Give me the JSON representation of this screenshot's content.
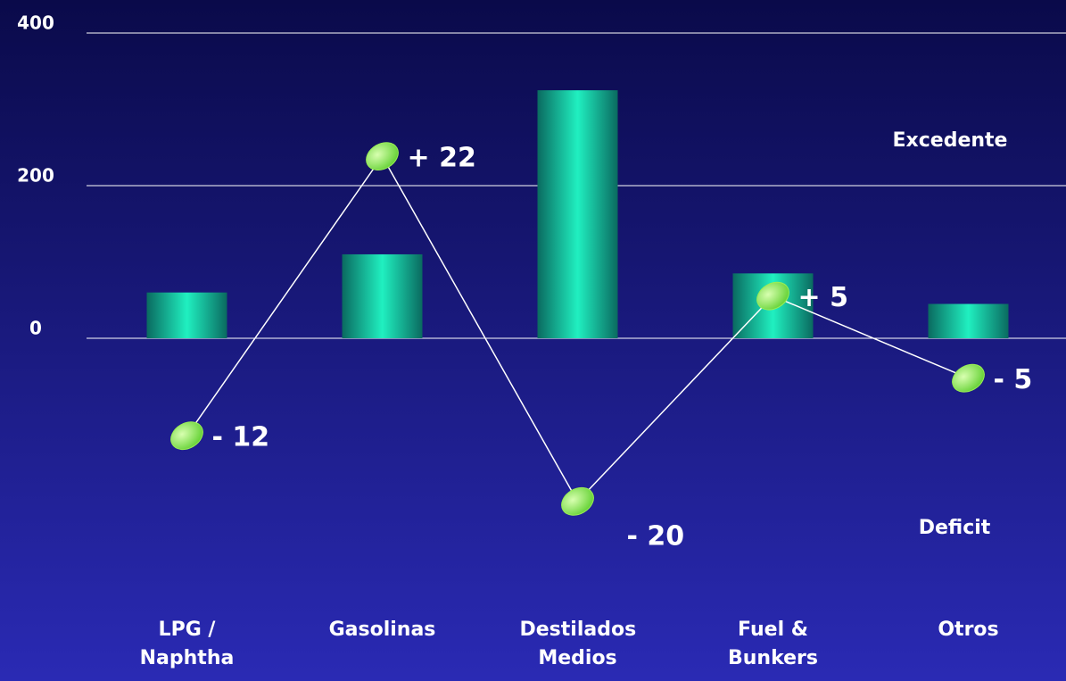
{
  "chart_data": {
    "type": "bar-line",
    "categories": [
      "LPG / Naphtha",
      "Gasolinas",
      "Destilados Medios",
      "Fuel & Bunkers",
      "Otros"
    ],
    "series": [
      {
        "type": "bar",
        "color": "#1de0b0",
        "values": [
          60,
          110,
          325,
          85,
          45
        ]
      },
      {
        "type": "line",
        "axis": "y2",
        "color": "#99ee55",
        "values": [
          -12,
          22,
          -20,
          5,
          -5
        ],
        "value_labels": [
          "- 12",
          "+ 22",
          "- 20",
          "+ 5",
          "- 5"
        ]
      }
    ],
    "ylim": [
      -300,
      400
    ],
    "yticks": [
      0,
      200,
      400
    ],
    "y2lim": [
      -28,
      37
    ],
    "grid": true,
    "annotations": [
      "Excedente",
      "Deficit"
    ]
  }
}
